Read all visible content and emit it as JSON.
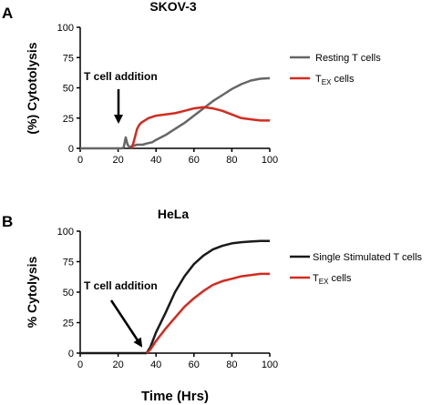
{
  "figure": {
    "xlabel": "Time (Hrs)"
  },
  "chart_data": [
    {
      "type": "line",
      "panel_letter": "A",
      "title": "SKOV-3",
      "ylabel": "(%) Cytotolysis",
      "xlabel": "",
      "xlim": [
        0,
        100
      ],
      "ylim": [
        0,
        100
      ],
      "x_ticks": [
        "0",
        "20",
        "40",
        "60",
        "80",
        "100"
      ],
      "y_ticks": [
        "0",
        "25",
        "50",
        "75",
        "100"
      ],
      "grid": false,
      "legend_position": "right",
      "annotation": {
        "text": "T cell addition",
        "arrow_x": 20
      },
      "series": [
        {
          "name": "Resting T cells",
          "color": "#666666",
          "x": [
            0,
            10,
            20,
            22,
            23,
            24,
            25,
            26,
            28,
            30,
            33,
            35,
            38,
            40,
            45,
            50,
            55,
            60,
            65,
            70,
            75,
            80,
            85,
            90,
            95,
            100
          ],
          "y": [
            0,
            0,
            0,
            0,
            1,
            9,
            3,
            1,
            2,
            3,
            3,
            4,
            5,
            7,
            11,
            16,
            21,
            27,
            33,
            39,
            44,
            49,
            53,
            56,
            57.5,
            58
          ]
        },
        {
          "name": "T_EX cells",
          "name_main": "T",
          "name_sub": "EX",
          "name_rest": " cells",
          "color": "#d42a1e",
          "x": [
            27,
            28,
            29,
            30,
            31,
            32,
            34,
            36,
            40,
            45,
            50,
            55,
            60,
            65,
            70,
            75,
            80,
            85,
            90,
            95,
            100
          ],
          "y": [
            0,
            4,
            10,
            16,
            19,
            21,
            23,
            25,
            27,
            28,
            29,
            31,
            33,
            34,
            33,
            31,
            28,
            25,
            24,
            23,
            23
          ]
        }
      ]
    },
    {
      "type": "line",
      "panel_letter": "B",
      "title": "HeLa",
      "ylabel": "% Cytolysis",
      "xlabel": "Time (Hrs)",
      "xlim": [
        0,
        100
      ],
      "ylim": [
        0,
        100
      ],
      "x_ticks": [
        "0",
        "20",
        "40",
        "60",
        "80",
        "100"
      ],
      "y_ticks": [
        "0",
        "25",
        "50",
        "75",
        "100"
      ],
      "grid": false,
      "legend_position": "right",
      "annotation": {
        "text": "T cell addition",
        "arrow_x": 35
      },
      "series": [
        {
          "name": "Single Stimulated T cells",
          "color": "#1a1a1a",
          "x": [
            0,
            10,
            20,
            30,
            34,
            35,
            37,
            40,
            45,
            50,
            55,
            60,
            65,
            70,
            75,
            80,
            85,
            90,
            95,
            100
          ],
          "y": [
            0,
            0,
            0,
            0,
            0,
            0,
            5,
            17,
            33,
            50,
            63,
            73,
            80,
            85,
            88,
            90,
            91,
            91.5,
            92,
            92
          ]
        },
        {
          "name": "T_EX cells",
          "name_main": "T",
          "name_sub": "EX",
          "name_rest": " cells",
          "color": "#d42a1e",
          "x": [
            35,
            37,
            40,
            45,
            50,
            55,
            60,
            65,
            70,
            75,
            80,
            85,
            90,
            95,
            100
          ],
          "y": [
            0,
            3,
            10,
            20,
            29,
            38,
            45,
            51,
            56,
            59,
            61,
            63,
            64,
            65,
            65
          ]
        }
      ]
    }
  ]
}
